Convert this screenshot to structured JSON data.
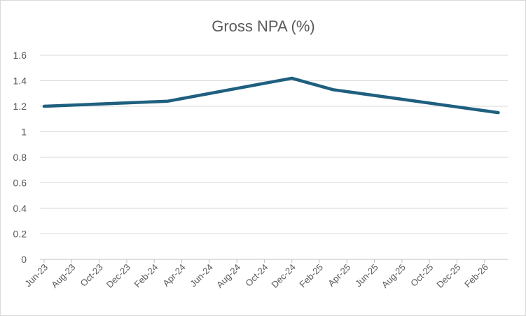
{
  "chart_data": {
    "type": "line",
    "title": "Gross NPA (%)",
    "xlabel": "",
    "ylabel": "",
    "ylim": [
      0,
      1.6
    ],
    "yticks": [
      0,
      0.2,
      0.4,
      0.6,
      0.8,
      1,
      1.2,
      1.4,
      1.6
    ],
    "ytick_labels": [
      "0",
      "0.2",
      "0.4",
      "0.6",
      "0.8",
      "1",
      "1.2",
      "1.4",
      "1.6"
    ],
    "xticks": [
      "Jun-23",
      "Aug-23",
      "Oct-23",
      "Dec-23",
      "Feb-24",
      "Apr-24",
      "Jun-24",
      "Aug-24",
      "Oct-24",
      "Dec-24",
      "Feb-25",
      "Apr-25",
      "Jun-25",
      "Aug-25",
      "Oct-25",
      "Dec-25",
      "Feb-26"
    ],
    "grid": true,
    "legend": "none",
    "series": [
      {
        "color": "#1f5f7f",
        "points": [
          {
            "x": "Jun-23",
            "y": 1.2
          },
          {
            "x": "Mar-24",
            "y": 1.24
          },
          {
            "x": "Dec-24",
            "y": 1.42
          },
          {
            "x": "Mar-25",
            "y": 1.33
          },
          {
            "x": "Mar-26",
            "y": 1.15
          }
        ]
      }
    ]
  }
}
